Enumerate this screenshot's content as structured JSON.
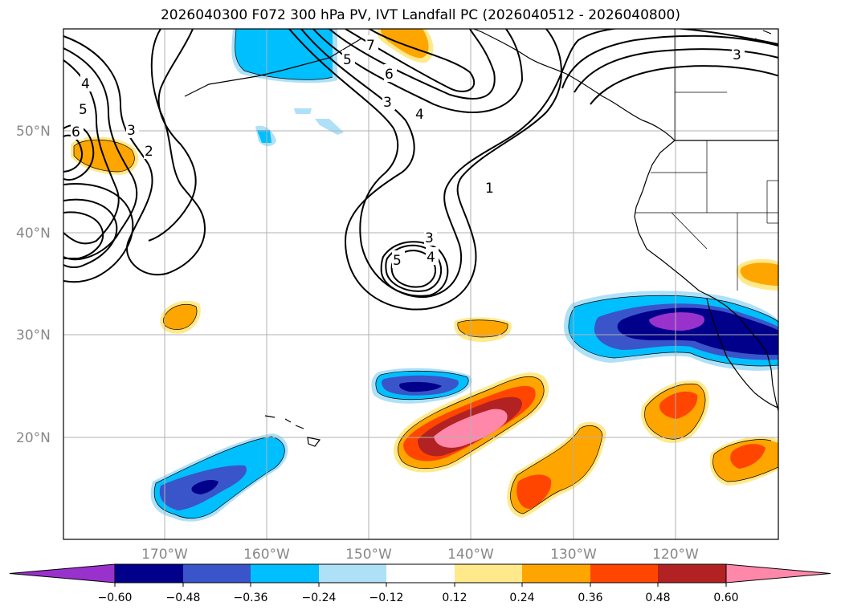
{
  "title": "2026040300 F072 300 hPa PV, IVT Landfall PC (2026040512 - 2026040800)",
  "lat_labels": [
    "50°N",
    "40°N",
    "30°N",
    "20°N"
  ],
  "lon_labels": [
    "170°W",
    "160°W",
    "150°W",
    "140°W",
    "130°W",
    "120°W"
  ],
  "contour_labels": [
    "7",
    "6",
    "5",
    "4",
    "3",
    "1",
    "3",
    "4",
    "5",
    "4",
    "5",
    "6",
    "3",
    "2",
    "3"
  ],
  "colorbar": {
    "ticks": [
      "−0.60",
      "−0.48",
      "−0.36",
      "−0.24",
      "−0.12",
      "0.12",
      "0.24",
      "0.36",
      "0.48",
      "0.60"
    ],
    "colors": [
      "#9932cc",
      "#00008b",
      "#3a55c9",
      "#00bfff",
      "#aee0f7",
      "#ffffff",
      "#ffe98a",
      "#ffa500",
      "#ff4500",
      "#b22222",
      "#ff88aa"
    ]
  }
}
